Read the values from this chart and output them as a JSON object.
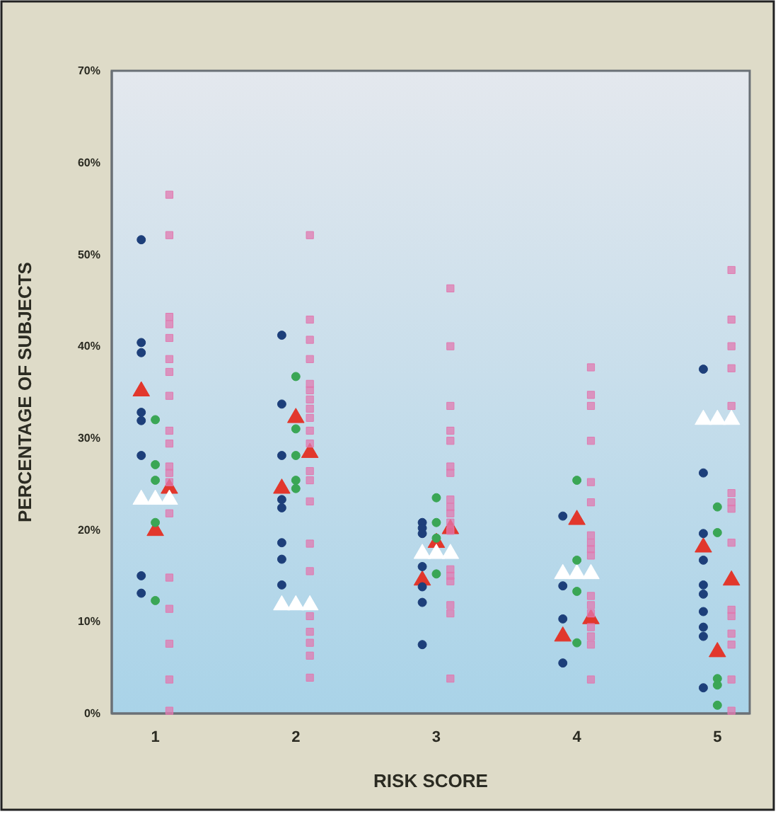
{
  "chart_data": {
    "type": "scatter",
    "xlabel": "RISK SCORE",
    "ylabel": "PERCENTAGE OF SUBJECTS",
    "xlim": [
      0.69,
      5.23
    ],
    "xticks": [
      1,
      2,
      3,
      4,
      5
    ],
    "ylim": [
      0,
      70
    ],
    "yticks": [
      {
        "value": 0,
        "label": "0%"
      },
      {
        "value": 10,
        "label": "10%"
      },
      {
        "value": 20,
        "label": "20%"
      },
      {
        "value": 30,
        "label": "30%"
      },
      {
        "value": 40,
        "label": "40%"
      },
      {
        "value": 50,
        "label": "50%"
      },
      {
        "value": 60,
        "label": "60%"
      },
      {
        "value": 70,
        "label": "70%"
      }
    ],
    "series": [
      {
        "color": "#1d3f7a",
        "marker": "circle",
        "x": [
          0.9,
          0.9,
          0.9,
          0.9,
          0.9,
          0.9,
          0.9,
          0.9,
          1.9,
          1.9,
          1.9,
          1.9,
          1.9,
          1.9,
          1.9,
          1.9,
          2.9,
          2.9,
          2.9,
          2.9,
          2.9,
          2.9,
          2.9,
          3.9,
          3.9,
          3.9,
          3.9,
          4.9,
          4.9,
          4.9,
          4.9,
          4.9,
          4.9,
          4.9,
          4.9,
          4.9,
          4.9
        ],
        "values": [
          51.6,
          40.4,
          39.3,
          32.8,
          31.9,
          28.1,
          15.0,
          13.1,
          41.2,
          33.7,
          28.1,
          23.3,
          22.4,
          18.6,
          16.8,
          14.0,
          20.8,
          20.2,
          19.6,
          16.0,
          13.8,
          12.1,
          7.5,
          21.5,
          13.9,
          10.3,
          5.5,
          37.5,
          26.2,
          19.6,
          16.7,
          14.0,
          13.0,
          11.1,
          9.4,
          8.4,
          2.8
        ]
      },
      {
        "color": "#3aa655",
        "marker": "circle",
        "x": [
          1,
          1,
          1,
          1,
          1,
          2,
          2,
          2,
          2,
          2,
          3,
          3,
          3,
          3,
          4,
          4,
          4,
          4,
          5,
          5,
          5,
          5,
          5
        ],
        "values": [
          32.0,
          27.1,
          25.4,
          20.8,
          12.3,
          36.7,
          31.0,
          28.1,
          25.4,
          24.5,
          23.5,
          20.8,
          19.1,
          15.2,
          25.4,
          16.7,
          13.3,
          7.7,
          22.5,
          19.7,
          3.8,
          3.1,
          0.9
        ]
      },
      {
        "color": "#e07ab0",
        "marker": "square",
        "x": [
          1.1,
          1.1,
          1.1,
          1.1,
          1.1,
          1.1,
          1.1,
          1.1,
          1.1,
          1.1,
          1.1,
          1.1,
          1.1,
          1.1,
          1.1,
          1.1,
          1.1,
          1.1,
          1.1,
          2.1,
          2.1,
          2.1,
          2.1,
          2.1,
          2.1,
          2.1,
          2.1,
          2.1,
          2.1,
          2.1,
          2.1,
          2.1,
          2.1,
          2.1,
          2.1,
          2.1,
          2.1,
          2.1,
          2.1,
          2.1,
          3.1,
          3.1,
          3.1,
          3.1,
          3.1,
          3.1,
          3.1,
          3.1,
          3.1,
          3.1,
          3.1,
          3.1,
          3.1,
          3.1,
          3.1,
          3.1,
          3.1,
          3.1,
          4.1,
          4.1,
          4.1,
          4.1,
          4.1,
          4.1,
          4.1,
          4.1,
          4.1,
          4.1,
          4.1,
          4.1,
          4.1,
          4.1,
          4.1,
          4.1,
          4.1,
          5.1,
          5.1,
          5.1,
          5.1,
          5.1,
          5.1,
          5.1,
          5.1,
          5.1,
          5.1,
          5.1,
          5.1,
          5.1,
          5.1,
          5.1
        ],
        "values": [
          56.5,
          52.1,
          43.2,
          42.4,
          40.9,
          38.6,
          37.2,
          34.6,
          30.8,
          29.4,
          26.9,
          26.2,
          25.2,
          21.8,
          14.8,
          11.4,
          7.6,
          3.7,
          0.3,
          52.1,
          42.9,
          40.7,
          38.6,
          35.9,
          35.2,
          34.2,
          33.2,
          32.2,
          30.8,
          29.4,
          26.4,
          25.4,
          23.1,
          18.5,
          15.5,
          10.6,
          8.9,
          7.7,
          6.3,
          3.9,
          46.3,
          40.0,
          33.5,
          30.8,
          29.7,
          26.9,
          26.2,
          23.3,
          22.5,
          21.8,
          20.8,
          19.9,
          15.7,
          15.0,
          14.4,
          11.8,
          10.9,
          3.8,
          37.7,
          34.7,
          33.5,
          29.7,
          25.2,
          23.0,
          19.4,
          18.6,
          17.9,
          17.2,
          12.8,
          11.8,
          10.9,
          9.4,
          8.4,
          7.5,
          3.7,
          48.3,
          42.9,
          40.0,
          37.6,
          33.5,
          24.0,
          23.0,
          22.3,
          18.6,
          11.3,
          10.6,
          8.7,
          7.5,
          3.7,
          0.3
        ]
      },
      {
        "color": "#e2372c",
        "marker": "triangle",
        "x": [
          0.9,
          1.1,
          1.0,
          2.0,
          2.1,
          1.9,
          3.1,
          3.0,
          2.9,
          4.0,
          3.9,
          4.1,
          4.9,
          5.1,
          5.0
        ],
        "values": [
          35.1,
          24.5,
          19.9,
          32.2,
          28.4,
          24.5,
          20.1,
          18.6,
          14.5,
          21.1,
          8.4,
          10.3,
          18.1,
          14.5,
          6.7
        ]
      },
      {
        "color": "#ffffff",
        "marker": "triangle",
        "x": [
          0.9,
          1.0,
          1.1,
          1.9,
          2.0,
          2.1,
          2.9,
          3.0,
          3.1,
          3.9,
          4.0,
          4.1,
          4.9,
          5.0,
          5.1
        ],
        "values": [
          23.3,
          23.3,
          23.3,
          11.8,
          11.8,
          11.8,
          17.4,
          17.4,
          17.4,
          15.2,
          15.2,
          15.2,
          32.0,
          32.0,
          32.0
        ]
      }
    ]
  }
}
